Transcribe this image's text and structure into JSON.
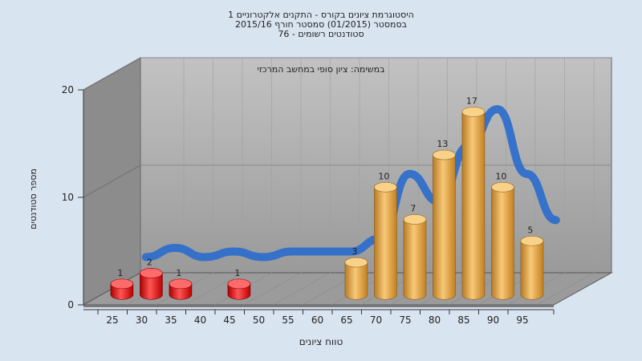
{
  "chart_data": {
    "type": "bar",
    "title_lines": [
      "היסטוגרמת ציונים בקורס - התקנים אלקטרוניים 1",
      "בסמסטר  (01/2015)  סמסטר חורף 2015/16",
      "סטודנטים רשומים - 76"
    ],
    "subtitle": "במשימה: ציון סופי במחשב המרכזי",
    "xlabel": "טווח ציונים",
    "ylabel": "מספר סטודנטים",
    "ylim": [
      0,
      20
    ],
    "yticks": [
      0,
      10,
      20
    ],
    "categories": [
      25,
      30,
      35,
      40,
      45,
      50,
      55,
      60,
      65,
      70,
      75,
      80,
      85,
      90,
      95
    ],
    "values": [
      1,
      2,
      1,
      null,
      1,
      null,
      null,
      null,
      3,
      10,
      7,
      13,
      17,
      10,
      5
    ],
    "bar_colors": {
      "fail": "#e01818",
      "pass": "#e8a33c"
    },
    "fail_below": 60,
    "trend_color": "#2f6fcb",
    "grid": true,
    "style": "3d-cylinders"
  }
}
